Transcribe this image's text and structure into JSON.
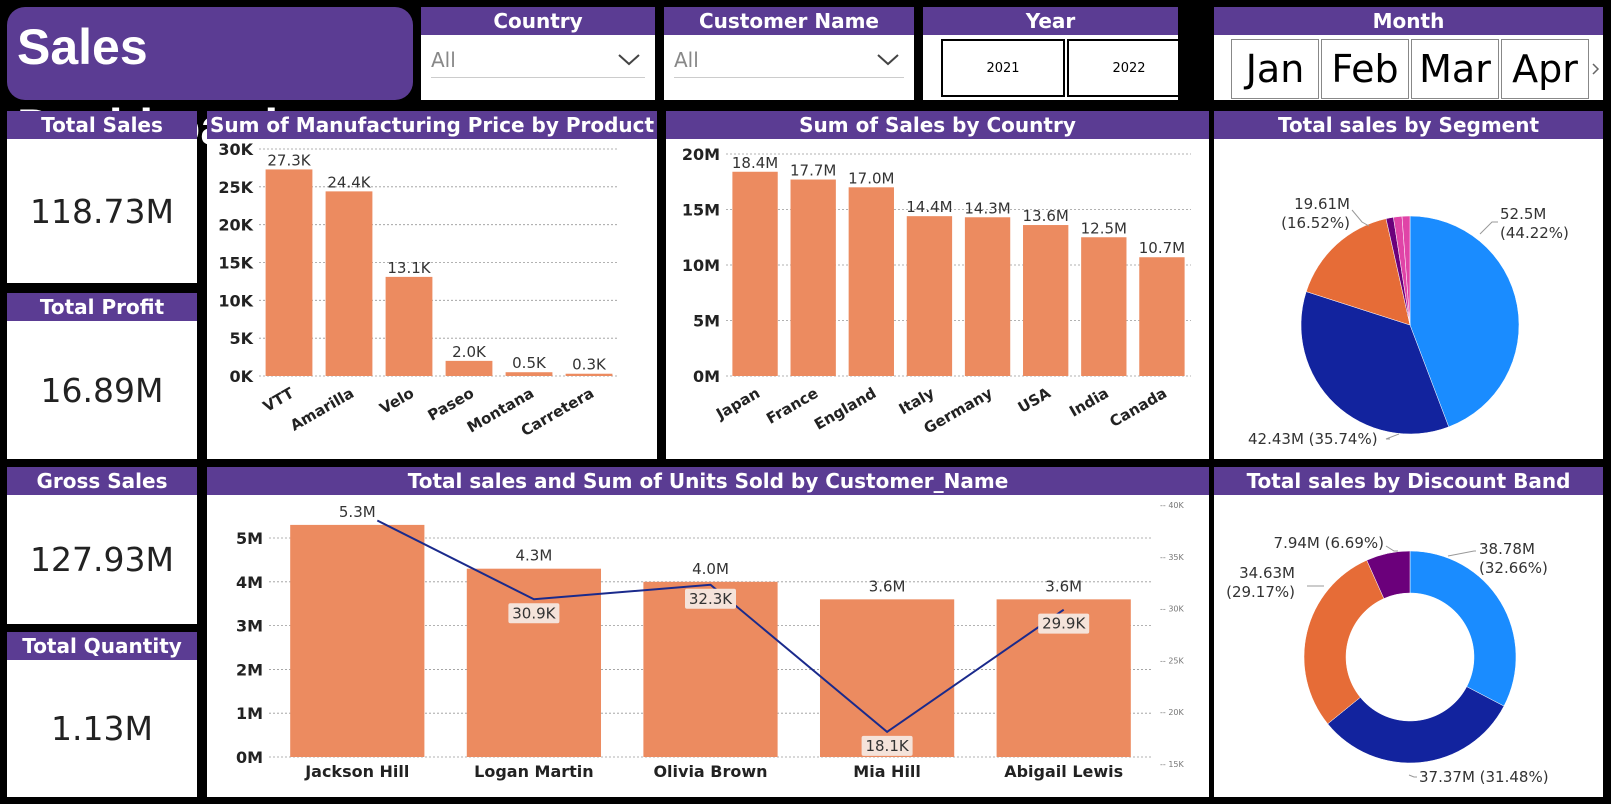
{
  "dashboard": {
    "title": "Sales Dashboard"
  },
  "slicers": {
    "country": {
      "label": "Country",
      "value": "All"
    },
    "customer": {
      "label": "Customer Name",
      "value": "All"
    },
    "year": {
      "label": "Year",
      "options": [
        "2021",
        "2022"
      ]
    },
    "month": {
      "label": "Month",
      "options": [
        "Jan",
        "Feb",
        "Mar",
        "Apr"
      ]
    }
  },
  "kpis": {
    "total_sales": {
      "label": "Total Sales",
      "value": "118.73M"
    },
    "total_profit": {
      "label": "Total Profit",
      "value": "16.89M"
    },
    "gross_sales": {
      "label": "Gross Sales",
      "value": "127.93M"
    },
    "total_quantity": {
      "label": "Total Quantity",
      "value": "1.13M"
    }
  },
  "colors": {
    "accent": "#5b3c93",
    "bar": "#ec8b60",
    "line": "#1a2a8c",
    "pie_light_blue": "#1a8cff",
    "pie_dark_blue": "#12239e",
    "pie_orange": "#e66c37",
    "pie_purple": "#6b007b",
    "pie_pink": "#e044a7"
  },
  "chart_data": [
    {
      "id": "mfg",
      "type": "bar",
      "title": "Sum of Manufacturing Price by Product",
      "categories": [
        "VTT",
        "Amarilla",
        "Velo",
        "Paseo",
        "Montana",
        "Carretera"
      ],
      "values": [
        27.3,
        24.4,
        13.1,
        2.0,
        0.5,
        0.3
      ],
      "data_labels": [
        "27.3K",
        "24.4K",
        "13.1K",
        "2.0K",
        "0.5K",
        "0.3K"
      ],
      "yticks": [
        "0K",
        "5K",
        "10K",
        "15K",
        "20K",
        "25K",
        "30K"
      ],
      "ylim": [
        0,
        30
      ],
      "grid": true
    },
    {
      "id": "country",
      "type": "bar",
      "title": "Sum of Sales by Country",
      "categories": [
        "Japan",
        "France",
        "England",
        "Italy",
        "Germany",
        "USA",
        "India",
        "Canada"
      ],
      "values": [
        18.4,
        17.7,
        17.0,
        14.4,
        14.3,
        13.6,
        12.5,
        10.7
      ],
      "data_labels": [
        "18.4M",
        "17.7M",
        "17.0M",
        "14.4M",
        "14.3M",
        "13.6M",
        "12.5M",
        "10.7M"
      ],
      "yticks": [
        "0M",
        "5M",
        "10M",
        "15M",
        "20M"
      ],
      "ylim": [
        0,
        20
      ],
      "grid": true
    },
    {
      "id": "segment",
      "type": "pie",
      "title": "Total sales by Segment",
      "values": [
        52.5,
        42.43,
        19.61,
        1.3,
        1.5,
        1.39
      ],
      "labels": [
        "52.5M\n(44.22%)",
        "42.43M (35.74%)",
        "19.61M\n(16.52%)",
        "",
        "",
        ""
      ]
    },
    {
      "id": "customer",
      "type": "bar",
      "title": "Total sales and Sum of Units Sold by Customer_Name",
      "categories": [
        "Jackson Hill",
        "Logan Martin",
        "Olivia Brown",
        "Mia Hill",
        "Abigail Lewis"
      ],
      "series": [
        {
          "name": "Total sales",
          "values": [
            5.3,
            4.3,
            4.0,
            3.6,
            3.6
          ],
          "data_labels": [
            "5.3M",
            "4.3M",
            "4.0M",
            "3.6M",
            "3.6M"
          ]
        },
        {
          "name": "Sum of Units Sold",
          "values": [
            38.5,
            30.9,
            32.3,
            18.1,
            29.9
          ],
          "data_labels": [
            "",
            "30.9K",
            "32.3K",
            "18.1K",
            "29.9K"
          ]
        }
      ],
      "yticks": [
        "0M",
        "1M",
        "2M",
        "3M",
        "4M",
        "5M"
      ],
      "ylim": [
        0,
        5.8
      ],
      "y2ticks": [
        "15K",
        "20K",
        "25K",
        "30K",
        "35K",
        "40K"
      ],
      "y2lim": [
        15,
        40
      ],
      "grid": true
    },
    {
      "id": "discount",
      "type": "pie",
      "title": "Total sales by Discount Band",
      "values": [
        38.78,
        37.37,
        34.63,
        7.94
      ],
      "labels": [
        "38.78M\n(32.66%)",
        "37.37M (31.48%)",
        "34.63M\n(29.17%)",
        "7.94M (6.69%)"
      ]
    }
  ]
}
